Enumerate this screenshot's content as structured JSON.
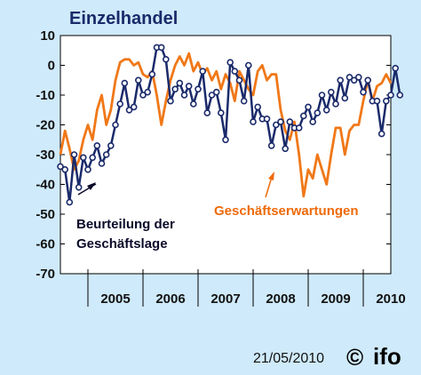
{
  "chart_data": {
    "type": "line",
    "title": "Einzelhandel",
    "ylim": [
      -70,
      10
    ],
    "yticks": [
      10,
      0,
      -10,
      -20,
      -30,
      -40,
      -50,
      -60,
      -70
    ],
    "year_labels": [
      "2005",
      "2006",
      "2007",
      "2008",
      "2009",
      "2010"
    ],
    "x_start_year": 2004.5,
    "x_end_year": 2010.5,
    "grid": false,
    "series": [
      {
        "name": "Geschäftserwartungen",
        "color": "#f07818",
        "marker": false,
        "start_year": 2004.5,
        "values": [
          -30,
          -22,
          -28,
          -35,
          -32,
          -25,
          -20,
          -25,
          -15,
          -10,
          -20,
          -15,
          -5,
          1,
          2,
          2,
          0,
          1,
          -3,
          -4,
          -2,
          -10,
          -20,
          -12,
          -5,
          0,
          3,
          0,
          4,
          -2,
          1,
          -3,
          -1,
          -5,
          -2,
          -8,
          -3,
          -6,
          -12,
          -2,
          -5,
          -8,
          -10,
          -2,
          0,
          -5,
          -3,
          -3,
          -15,
          -22,
          -25,
          -19,
          -30,
          -44,
          -35,
          -38,
          -30,
          -35,
          -40,
          -30,
          -21,
          -21,
          -30,
          -22,
          -20,
          -20,
          -12,
          -5,
          -12,
          -7,
          -6,
          -3,
          -6
        ]
      },
      {
        "name": "Beurteilung der Geschäftslage",
        "color": "#1a2a6a",
        "marker": true,
        "start_year": 2004.5,
        "values": [
          -34,
          -35,
          -46,
          -30,
          -41,
          -31,
          -35,
          -31,
          -27,
          -33,
          -30,
          -27,
          -20,
          -13,
          -6,
          -15,
          -14,
          -5,
          -10,
          -9,
          -3,
          6,
          6,
          2,
          -12,
          -8,
          -6,
          -10,
          -7,
          -13,
          -8,
          -2,
          -16,
          -10,
          -9,
          -16,
          -25,
          1,
          -2,
          -5,
          -12,
          0,
          -19,
          -14,
          -18,
          -18,
          -27,
          -20,
          -19,
          -28,
          -19,
          -21,
          -21,
          -17,
          -14,
          -19,
          -16,
          -10,
          -15,
          -9,
          -13,
          -5,
          -11,
          -4,
          -5,
          -4,
          -9,
          -5,
          -12,
          -12,
          -23,
          -12,
          -10,
          -1,
          -10
        ]
      }
    ],
    "annotations": {
      "business_situation_line1": "Beurteilung der",
      "business_situation_line2": "Geschäftslage",
      "business_expectations": "Geschäftserwartungen"
    }
  },
  "footer": {
    "date": "21/05/2010",
    "copyright": "©",
    "logo": "ifo"
  }
}
